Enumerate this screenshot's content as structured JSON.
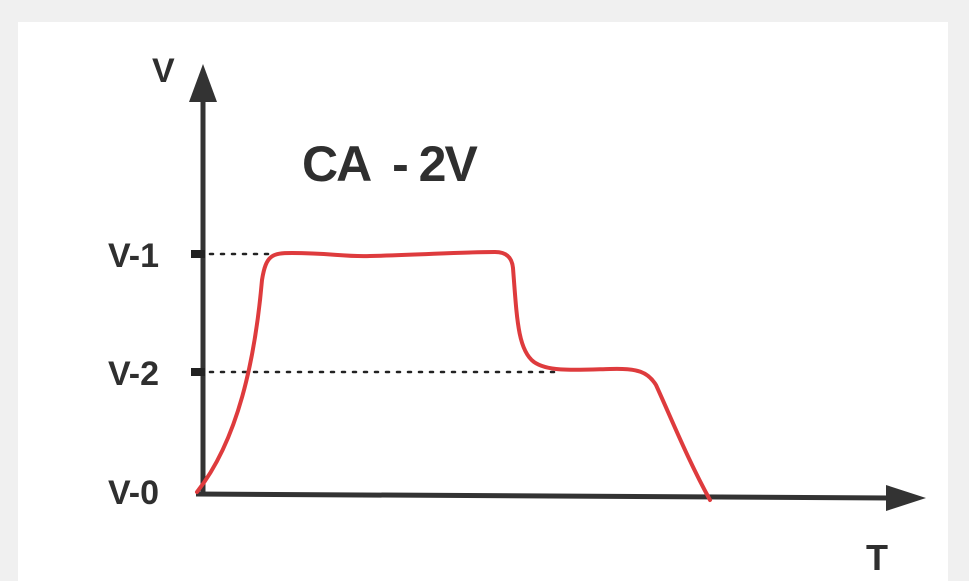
{
  "diagram": {
    "title": "CA  - 2V",
    "y_axis_label": "V",
    "x_axis_label": "T",
    "levels": [
      {
        "label": "V-1"
      },
      {
        "label": "V-2"
      },
      {
        "label": "V-0"
      }
    ],
    "colors": {
      "curve": "#de3b3d",
      "axes": "#333333",
      "guides": "#222222",
      "text": "#2f2f2f"
    }
  }
}
